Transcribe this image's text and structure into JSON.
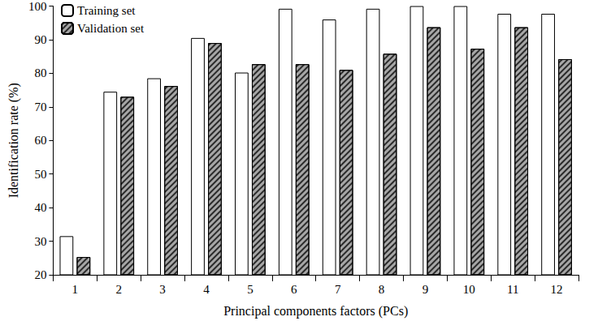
{
  "chart_data": {
    "type": "bar",
    "x_label": "Principal components factors (PCs)",
    "y_label": "Identification rate (%)",
    "categories": [
      "1",
      "2",
      "3",
      "4",
      "5",
      "6",
      "7",
      "8",
      "9",
      "10",
      "11",
      "12"
    ],
    "series": [
      {
        "name": "Training set",
        "color": "#ffffff",
        "values": [
          31.5,
          74.5,
          78.5,
          90.5,
          80.2,
          99.2,
          96,
          99.2,
          100,
          100,
          97.7,
          97.7
        ]
      },
      {
        "name": "Validation set",
        "color": "#a6a6a6",
        "values": [
          25.3,
          73,
          76.2,
          89,
          82.7,
          82.7,
          81,
          85.8,
          93.7,
          87.3,
          93.7,
          84.2
        ]
      }
    ],
    "ylim": [
      20,
      100
    ],
    "yticks": [
      20,
      30,
      40,
      50,
      60,
      70,
      80,
      90,
      100
    ],
    "grid": false,
    "legend": "upper left"
  }
}
